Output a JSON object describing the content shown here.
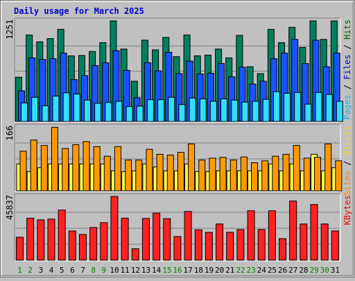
{
  "chart_data": {
    "type": "bar",
    "title": "Daily usage for March 2025",
    "days": [
      "1",
      "2",
      "3",
      "4",
      "5",
      "6",
      "7",
      "8",
      "9",
      "10",
      "11",
      "12",
      "13",
      "14",
      "15",
      "16",
      "17",
      "18",
      "19",
      "20",
      "21",
      "22",
      "23",
      "24",
      "25",
      "26",
      "27",
      "28",
      "29",
      "30",
      "31"
    ],
    "weekend_days": [
      "1",
      "2",
      "8",
      "9",
      "15",
      "16",
      "22",
      "23",
      "29",
      "30"
    ],
    "panels": [
      {
        "name": "hits-panel",
        "max_label": "1251",
        "ymax": 1251,
        "legend": [
          {
            "text": "Hits",
            "color": "#006400"
          },
          {
            "text": " / ",
            "color": "#000000"
          },
          {
            "text": "Files",
            "color": "#0000cd"
          },
          {
            "text": " / ",
            "color": "#000000"
          },
          {
            "text": "Pages",
            "color": "#00bfff"
          }
        ],
        "series": [
          {
            "name": "Hits",
            "color": "#00805f",
            "values": [
              550,
              1075,
              990,
              1030,
              1145,
              815,
              820,
              870,
              980,
              1250,
              900,
              500,
              1010,
              890,
              1045,
              805,
              1075,
              815,
              825,
              900,
              790,
              1070,
              680,
              595,
              1145,
              980,
              1170,
              920,
              1250,
              1020,
              1250
            ]
          },
          {
            "name": "Files",
            "color": "#1a52ff",
            "values": [
              380,
              790,
              770,
              780,
              850,
              520,
              570,
              695,
              730,
              880,
              635,
              295,
              730,
              630,
              860,
              595,
              750,
              590,
              600,
              720,
              555,
              675,
              465,
              500,
              780,
              850,
              1020,
              720,
              1010,
              680,
              850
            ]
          },
          {
            "name": "Pages",
            "color": "#33ddff",
            "values": [
              230,
              300,
              195,
              315,
              355,
              340,
              265,
              225,
              235,
              250,
              185,
              190,
              270,
              270,
              300,
              210,
              290,
              280,
              250,
              280,
              265,
              240,
              250,
              275,
              370,
              350,
              360,
              215,
              360,
              335,
              250
            ]
          }
        ]
      },
      {
        "name": "visits-panel",
        "max_label": "166",
        "ymax": 166,
        "legend": [
          {
            "text": "Visits",
            "color": "#ffd700"
          },
          {
            "text": " / ",
            "color": "#000000"
          },
          {
            "text": "Sites",
            "color": "#ff8c00"
          }
        ],
        "series": [
          {
            "name": "Visits",
            "color": "#ffff55",
            "values": [
              70,
              50,
              60,
              70,
              70,
              70,
              70,
              70,
              70,
              52,
              50,
              52,
              70,
              62,
              52,
              52,
              70,
              50,
              50,
              52,
              52,
              52,
              52,
              52,
              70,
              52,
              70,
              52,
              95,
              52,
              60
            ]
          },
          {
            "name": "Sites",
            "color": "#ff9900",
            "values": [
              103,
              132,
              118,
              165,
              110,
              120,
              128,
              115,
              90,
              115,
              80,
              80,
              108,
              95,
              93,
              100,
              122,
              80,
              85,
              87,
              80,
              88,
              73,
              78,
              90,
              95,
              118,
              85,
              87,
              122,
              78
            ]
          }
        ]
      },
      {
        "name": "kbytes-panel",
        "max_label": "45837",
        "ymax": 45837,
        "legend": [
          {
            "text": "KBytes",
            "color": "#ff0000"
          }
        ],
        "series": [
          {
            "name": "KBytes",
            "color": "#ff2020",
            "values": [
              16500,
              30200,
              29000,
              29500,
              36000,
              21000,
              18500,
              23500,
              27000,
              45800,
              30200,
              8200,
              30000,
              33800,
              29800,
              17000,
              35000,
              21800,
              20000,
              26000,
              20000,
              22000,
              35500,
              22000,
              35500,
              15500,
              42500,
              26000,
              40000,
              26000,
              21000
            ]
          }
        ]
      }
    ]
  }
}
